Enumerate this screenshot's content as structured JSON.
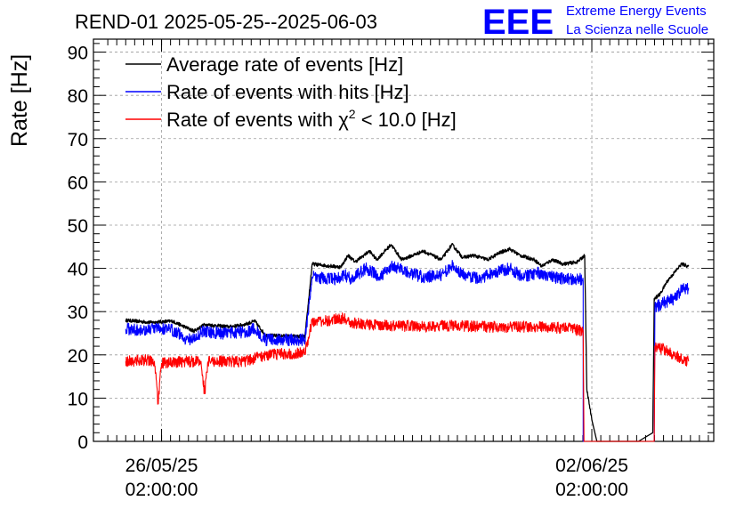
{
  "chart_data": {
    "type": "line",
    "title": "REND-01 2025-05-25--2025-06-03",
    "ylabel": "Rate [Hz]",
    "xlabel": "",
    "ylim": [
      0,
      93
    ],
    "yticks": [
      0,
      10,
      20,
      30,
      40,
      50,
      60,
      70,
      80,
      90
    ],
    "xlim_days": [
      0,
      8.65
    ],
    "xticks": [
      {
        "day": 0.95,
        "line1": "26/05/25",
        "line2": "02:00:00"
      },
      {
        "day": 6.95,
        "line1": "02/06/25",
        "line2": "02:00:00"
      }
    ],
    "grid": true,
    "legend_position": "top-left",
    "series": [
      {
        "name": "Average rate of events [Hz]",
        "color": "#000000",
        "points": [
          [
            0.45,
            28
          ],
          [
            0.8,
            27.5
          ],
          [
            1.1,
            27.8
          ],
          [
            1.4,
            25.5
          ],
          [
            1.55,
            27
          ],
          [
            1.9,
            26.5
          ],
          [
            2.1,
            27
          ],
          [
            2.25,
            27.8
          ],
          [
            2.4,
            24.5
          ],
          [
            2.95,
            24.2
          ],
          [
            3.05,
            41
          ],
          [
            3.45,
            40.3
          ],
          [
            3.55,
            43
          ],
          [
            3.65,
            41.5
          ],
          [
            3.85,
            44
          ],
          [
            3.95,
            42
          ],
          [
            4.15,
            45.5
          ],
          [
            4.3,
            42
          ],
          [
            4.45,
            43
          ],
          [
            4.6,
            44
          ],
          [
            4.85,
            42
          ],
          [
            5.0,
            45.5
          ],
          [
            5.15,
            42.5
          ],
          [
            5.3,
            43
          ],
          [
            5.5,
            42
          ],
          [
            5.65,
            43.5
          ],
          [
            5.8,
            44.5
          ],
          [
            5.95,
            43
          ],
          [
            6.15,
            42
          ],
          [
            6.25,
            40.5
          ],
          [
            6.4,
            42
          ],
          [
            6.55,
            41
          ],
          [
            6.75,
            41.5
          ],
          [
            6.85,
            43
          ],
          [
            6.88,
            12
          ],
          [
            6.95,
            5
          ],
          [
            7.02,
            0
          ],
          [
            7.6,
            0
          ],
          [
            7.8,
            2
          ],
          [
            7.82,
            33
          ],
          [
            7.9,
            34
          ],
          [
            8.0,
            37
          ],
          [
            8.1,
            39
          ],
          [
            8.2,
            41
          ],
          [
            8.3,
            40.5
          ]
        ]
      },
      {
        "name": "Rate of events with hits [Hz]",
        "color": "#0000ff",
        "points": [
          [
            0.45,
            26
          ],
          [
            0.7,
            25.8
          ],
          [
            0.95,
            26.1
          ],
          [
            1.15,
            25.5
          ],
          [
            1.3,
            23.5
          ],
          [
            1.45,
            24
          ],
          [
            1.5,
            25.5
          ],
          [
            1.8,
            25
          ],
          [
            2.1,
            25.3
          ],
          [
            2.25,
            26
          ],
          [
            2.4,
            23.5
          ],
          [
            2.95,
            23.5
          ],
          [
            3.05,
            38
          ],
          [
            3.4,
            37.5
          ],
          [
            3.5,
            38.5
          ],
          [
            3.6,
            37.5
          ],
          [
            3.8,
            40
          ],
          [
            4.0,
            38
          ],
          [
            4.15,
            40.5
          ],
          [
            4.4,
            39
          ],
          [
            4.6,
            38
          ],
          [
            4.85,
            38.5
          ],
          [
            5.0,
            40.5
          ],
          [
            5.2,
            38
          ],
          [
            5.4,
            37.8
          ],
          [
            5.6,
            39
          ],
          [
            5.8,
            40
          ],
          [
            6.0,
            38
          ],
          [
            6.2,
            39
          ],
          [
            6.4,
            38
          ],
          [
            6.6,
            37.5
          ],
          [
            6.8,
            37.5
          ],
          [
            6.83,
            37
          ],
          [
            6.83,
            0
          ],
          [
            7.7,
            0
          ],
          [
            7.82,
            0
          ],
          [
            7.83,
            31
          ],
          [
            7.95,
            32
          ],
          [
            8.1,
            33
          ],
          [
            8.2,
            35
          ],
          [
            8.3,
            35.5
          ]
        ]
      },
      {
        "name": "Rate of events with χ² < 10.0 [Hz]",
        "color": "#ff0000",
        "points": [
          [
            0.45,
            18.5
          ],
          [
            0.7,
            18.8
          ],
          [
            0.85,
            18.5
          ],
          [
            0.9,
            9
          ],
          [
            0.95,
            18
          ],
          [
            1.3,
            18.5
          ],
          [
            1.5,
            18.5
          ],
          [
            1.55,
            11
          ],
          [
            1.6,
            18.5
          ],
          [
            2.1,
            18.5
          ],
          [
            2.4,
            20
          ],
          [
            2.95,
            20.5
          ],
          [
            3.05,
            27.8
          ],
          [
            3.3,
            28
          ],
          [
            3.5,
            28.5
          ],
          [
            3.6,
            27.5
          ],
          [
            3.8,
            27
          ],
          [
            4.2,
            26.8
          ],
          [
            4.6,
            26.5
          ],
          [
            5.0,
            26.8
          ],
          [
            5.4,
            26.5
          ],
          [
            5.8,
            26.5
          ],
          [
            6.2,
            26.5
          ],
          [
            6.6,
            26.2
          ],
          [
            6.83,
            25.5
          ],
          [
            6.84,
            0
          ],
          [
            7.82,
            0
          ],
          [
            7.83,
            22
          ],
          [
            8.0,
            21
          ],
          [
            8.2,
            19
          ],
          [
            8.3,
            18.5
          ]
        ]
      }
    ]
  },
  "legend": {
    "black_label": "Average rate of events [Hz]",
    "blue_label": "Rate of events with hits [Hz]",
    "red_label_prefix": "Rate of events with ",
    "red_label_chi": "χ",
    "red_label_sup": "2",
    "red_label_suffix": " < 10.0 [Hz]"
  },
  "logo": {
    "text": "EEE",
    "line1": "Extreme Energy Events",
    "line2": "La Scienza nelle Scuole",
    "color": "#0000ff"
  }
}
